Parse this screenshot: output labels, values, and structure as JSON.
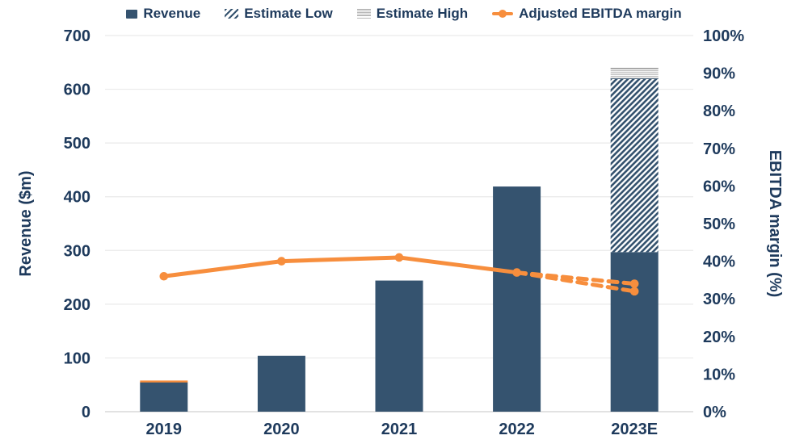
{
  "legend": {
    "items": [
      {
        "label": "Revenue",
        "swatch": "navy-square"
      },
      {
        "label": "Estimate Low",
        "swatch": "diagonal-hatch"
      },
      {
        "label": "Estimate High",
        "swatch": "gray-horizontal-lines"
      },
      {
        "label": "Adjusted EBITDA margin",
        "swatch": "orange-line-marker"
      }
    ]
  },
  "colors": {
    "bar_navy": "#35536F",
    "text_navy": "#1E3A5C",
    "orange": "#F78E3D",
    "gridline": "#EAEAEA",
    "zero_axis": "#D8D8D8",
    "estimate_high_gray": "#B9B9B9"
  },
  "chart_data": {
    "type": "bar",
    "subtype": "combo-bar-line-dual-axis",
    "title": "",
    "categories": [
      "2019",
      "2020",
      "2021",
      "2022",
      "2023E"
    ],
    "bar_series": [
      {
        "name": "Revenue",
        "axis": "left",
        "style": "solid-navy",
        "values": [
          55,
          104,
          244,
          419,
          297
        ]
      },
      {
        "name": "Estimate Low",
        "axis": "left",
        "style": "diagonal-hatch",
        "stacked_on": "Revenue",
        "segment_values": [
          0,
          0,
          0,
          0,
          323
        ],
        "top_totals": [
          null,
          null,
          null,
          null,
          620
        ]
      },
      {
        "name": "Estimate High",
        "axis": "left",
        "style": "gray-horizontal-lines",
        "stacked_on": "Estimate Low",
        "segment_values": [
          0,
          0,
          0,
          0,
          20
        ],
        "top_totals": [
          null,
          null,
          null,
          null,
          640
        ]
      }
    ],
    "line_series": {
      "name": "Adjusted EBITDA margin",
      "axis": "right",
      "unit": "%",
      "solid_points": [
        {
          "category": "2019",
          "value": 36
        },
        {
          "category": "2020",
          "value": 40
        },
        {
          "category": "2021",
          "value": 41
        },
        {
          "category": "2022",
          "value": 37
        }
      ],
      "dashed_forecast": {
        "from_category": "2022",
        "from_value": 37,
        "branches": [
          {
            "category": "2023E",
            "value": 34
          },
          {
            "category": "2023E",
            "value": 32
          }
        ]
      }
    },
    "left_axis": {
      "label": "Revenue ($m)",
      "min": 0,
      "max": 700,
      "step": 100
    },
    "right_axis": {
      "label": "EBITDA margin (%)",
      "min": 0,
      "max": 100,
      "step": 10,
      "suffix": "%"
    },
    "grid": "horizontal-only",
    "legend_position": "top",
    "details": {
      "orange_cap_on_2019_bar": true
    }
  }
}
